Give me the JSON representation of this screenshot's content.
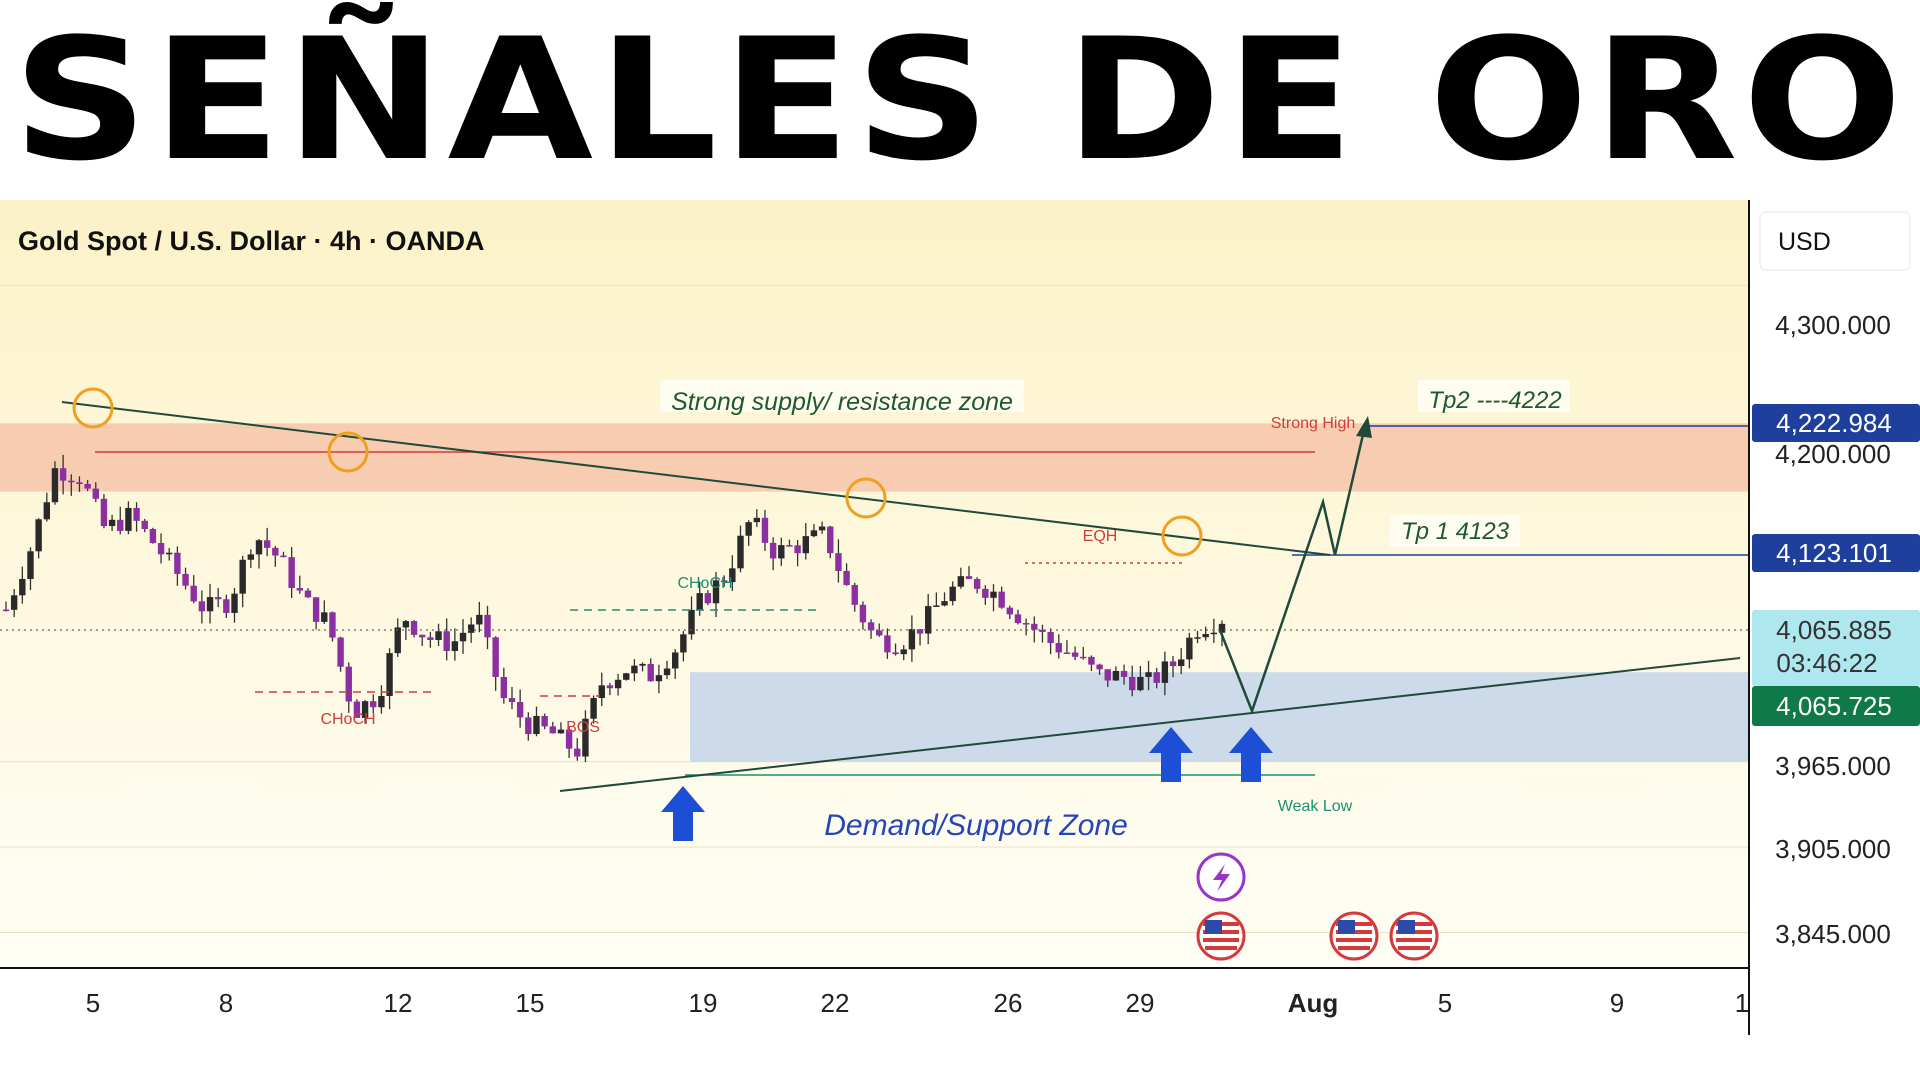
{
  "banner": {
    "title": "SEÑALES DE ORO"
  },
  "header": {
    "symbol_title": "Gold Spot / U.S. Dollar · 4h · OANDA",
    "currency": "USD"
  },
  "colors": {
    "bull": "#2a2a2a",
    "bear": "#8c2fa0",
    "wick": "#333333",
    "supply": "#f6c2a8",
    "demand": "#c8d6ea",
    "trendline": "#1f4a3a",
    "target": "#1e3f9c",
    "arrow": "#1d4fd6"
  },
  "annotations": {
    "supply_label": "Strong supply/ resistance zone",
    "demand_label": "Demand/Support Zone",
    "tp2": "Tp2 ----4222",
    "tp1": "Tp 1 4123",
    "strong_high": "Strong High",
    "weak_low": "Weak Low",
    "eqh": "EQH",
    "choch_1": "CHoCH",
    "choch_2": "CHoCH",
    "bos": "BOS"
  },
  "price_badges": {
    "tp2_value": "4,222.984",
    "tp1_value": "4,123.101",
    "current_price": "4,065.885",
    "countdown": "03:46:22",
    "support_price": "4,065.725"
  },
  "chart_data": {
    "type": "candlestick",
    "title": "Gold Spot / U.S. Dollar · 4h · OANDA",
    "y_axis": {
      "unit": "USD",
      "range": [
        3820,
        4360
      ],
      "ticks": [
        "4,300.000",
        "4,200.000",
        "3,965.000",
        "3,905.000",
        "3,845.000"
      ]
    },
    "x_axis": {
      "ticks": [
        "5",
        "8",
        "12",
        "15",
        "19",
        "22",
        "26",
        "29",
        "Aug",
        "5",
        "9",
        "1"
      ]
    },
    "zones": {
      "supply": {
        "low": 4155,
        "high": 4203
      },
      "demand": {
        "low": 3965,
        "high": 4028
      }
    },
    "levels": {
      "tp2": 4222.984,
      "tp1": 4123.101,
      "current": 4065.885,
      "support": 4065.725
    },
    "close_path": [
      4072,
      4115,
      4172,
      4165,
      4128,
      4138,
      4118,
      4095,
      4072,
      4078,
      4125,
      4108,
      4078,
      4062,
      4000,
      4012,
      4068,
      4052,
      4048,
      4068,
      4010,
      3992,
      3985,
      3972,
      4020,
      4030,
      4026,
      4045,
      4078,
      4096,
      4135,
      4112,
      4118,
      4125,
      4082,
      4052,
      4048,
      4063,
      4085,
      4092,
      4082,
      4065,
      4050,
      4040,
      4026,
      4025,
      4020,
      4033,
      4059,
      4066
    ]
  }
}
